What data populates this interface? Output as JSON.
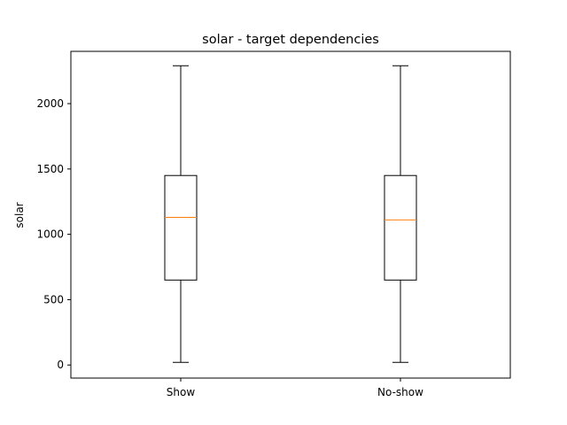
{
  "chart_data": {
    "type": "box",
    "title": "solar - target dependencies",
    "xlabel": "",
    "ylabel": "solar",
    "categories": [
      "Show",
      "No-show"
    ],
    "ylim": [
      -100,
      2400
    ],
    "yticks": [
      0,
      500,
      1000,
      1500,
      2000
    ],
    "grid": false,
    "series": [
      {
        "category": "Show",
        "whisker_low": 20,
        "q1": 650,
        "median": 1130,
        "q3": 1450,
        "whisker_high": 2290
      },
      {
        "category": "No-show",
        "whisker_low": 20,
        "q1": 650,
        "median": 1110,
        "q3": 1450,
        "whisker_high": 2290
      }
    ],
    "colors": {
      "box": "#000000",
      "median": "#ff7f0e",
      "axes": "#000000"
    }
  }
}
